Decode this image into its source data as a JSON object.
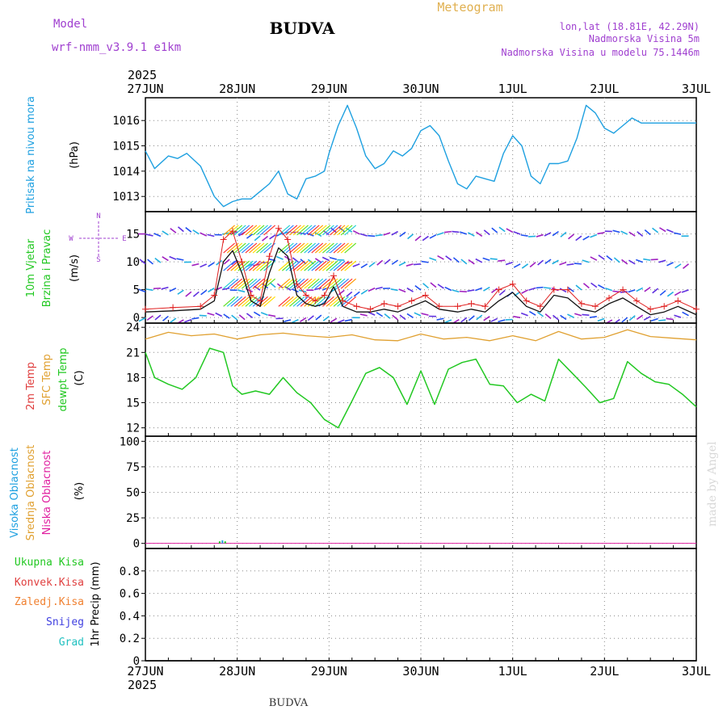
{
  "header": {
    "model_label": "Model",
    "model_name": "wrf-nmm_v3.9.1 e1km",
    "title": "BUDVA",
    "meteogram": "Meteogram",
    "lonlat": "lon,lat (18.81E, 42.29N)",
    "elevation": "Nadmorska Visina 5m",
    "model_elevation": "Nadmorska Visina u modelu 75.1446m",
    "year_top": "2025",
    "year_bottom": "2025",
    "footer": "BUDVA",
    "credit": "made by Angel"
  },
  "colors": {
    "pressure": "#1ea0e0",
    "sfc_temp": "#e0a030",
    "dewpt": "#22c822",
    "wind_speed": "#111111",
    "gust": "#e02020",
    "purple": "#a040d0",
    "snow": "#4040e0",
    "grad": "#20c0c0"
  },
  "chart_data": [
    {
      "type": "line",
      "panel": "pressure",
      "ylabel": "(hPa)",
      "side_label": "Pritisak na nivou mora",
      "x_ticks": [
        "27JUN",
        "28JUN",
        "29JUN",
        "30JUN",
        "1JUL",
        "2JUL",
        "3JUL"
      ],
      "ylim": [
        1012.4,
        1016.9
      ],
      "y_ticks": [
        1013,
        1014,
        1015,
        1016
      ],
      "grid": true,
      "series": [
        {
          "x": [
            0,
            0.1,
            0.25,
            0.35,
            0.45,
            0.6,
            0.75,
            0.85,
            0.95,
            1.05,
            1.15,
            1.25,
            1.35,
            1.45,
            1.55,
            1.65,
            1.75,
            1.85,
            1.95,
            2.0,
            2.1,
            2.2,
            2.3,
            2.4,
            2.5,
            2.6,
            2.7,
            2.8,
            2.9,
            3.0,
            3.1,
            3.2,
            3.3,
            3.4,
            3.5,
            3.6,
            3.7,
            3.8,
            3.9,
            4.0,
            4.1,
            4.2,
            4.3,
            4.4,
            4.5,
            4.6,
            4.7,
            4.8,
            4.9,
            5.0,
            5.1,
            5.2,
            5.3,
            5.4,
            5.5,
            5.6,
            5.7,
            5.8,
            5.9,
            6.0
          ],
          "values": [
            1014.8,
            1014.1,
            1014.6,
            1014.5,
            1014.7,
            1014.2,
            1013.0,
            1012.6,
            1012.8,
            1012.9,
            1012.9,
            1013.2,
            1013.5,
            1014.0,
            1013.1,
            1012.9,
            1013.7,
            1013.8,
            1014.0,
            1014.7,
            1015.8,
            1016.6,
            1015.7,
            1014.6,
            1014.1,
            1014.3,
            1014.8,
            1014.6,
            1014.9,
            1015.6,
            1015.8,
            1015.4,
            1014.4,
            1013.5,
            1013.3,
            1013.8,
            1013.7,
            1013.6,
            1014.7,
            1015.4,
            1015.0,
            1013.8,
            1013.5,
            1014.3,
            1014.3,
            1014.4,
            1015.3,
            1016.6,
            1016.3,
            1015.7,
            1015.5,
            1015.8,
            1016.1,
            1015.9,
            1015.9,
            1015.9,
            1015.9,
            1015.9,
            1015.9,
            1015.9
          ]
        }
      ]
    },
    {
      "type": "line",
      "panel": "wind",
      "ylabel": "(m/s)",
      "side_labels": [
        "10m Vjetar",
        "Brzina i Pravac"
      ],
      "compass": [
        "N",
        "W",
        "E",
        "S"
      ],
      "ylim": [
        -1,
        19
      ],
      "y_ticks": [
        0,
        5,
        10,
        15
      ],
      "grid": true,
      "series": [
        {
          "name": "speed",
          "x": [
            0,
            0.3,
            0.6,
            0.75,
            0.85,
            0.95,
            1.05,
            1.15,
            1.25,
            1.35,
            1.45,
            1.55,
            1.65,
            1.75,
            1.85,
            1.95,
            2.05,
            2.15,
            2.3,
            2.45,
            2.6,
            2.75,
            2.9,
            3.05,
            3.2,
            3.4,
            3.55,
            3.7,
            3.85,
            4.0,
            4.15,
            4.3,
            4.45,
            4.6,
            4.75,
            4.9,
            5.05,
            5.2,
            5.35,
            5.5,
            5.65,
            5.8,
            6.0
          ],
          "values": [
            1.0,
            1.2,
            1.5,
            3.0,
            10.0,
            12.0,
            8.0,
            3.0,
            2.0,
            8.0,
            12.5,
            11.0,
            4.0,
            2.5,
            2.0,
            2.5,
            5.5,
            2.0,
            1.0,
            1.0,
            1.5,
            1.0,
            2.0,
            3.0,
            1.5,
            1.0,
            1.5,
            1.0,
            3.0,
            4.5,
            2.0,
            1.0,
            4.0,
            3.5,
            1.5,
            1.0,
            2.5,
            3.5,
            2.0,
            0.5,
            1.0,
            2.0,
            0.5
          ]
        },
        {
          "name": "gust",
          "x": [
            0,
            0.3,
            0.6,
            0.75,
            0.85,
            0.95,
            1.05,
            1.15,
            1.25,
            1.35,
            1.45,
            1.55,
            1.65,
            1.75,
            1.85,
            1.95,
            2.05,
            2.15,
            2.3,
            2.45,
            2.6,
            2.75,
            2.9,
            3.05,
            3.2,
            3.4,
            3.55,
            3.7,
            3.85,
            4.0,
            4.15,
            4.3,
            4.45,
            4.6,
            4.75,
            4.9,
            5.05,
            5.2,
            5.35,
            5.5,
            5.65,
            5.8,
            6.0
          ],
          "values": [
            1.5,
            1.8,
            2.0,
            4.0,
            14.0,
            15.5,
            10.0,
            4.0,
            3.0,
            11.0,
            16.0,
            14.0,
            6.0,
            4.0,
            3.0,
            4.0,
            7.5,
            3.0,
            2.0,
            1.5,
            2.5,
            2.0,
            3.0,
            4.0,
            2.0,
            2.0,
            2.5,
            2.0,
            5.0,
            6.0,
            3.0,
            2.0,
            5.0,
            5.0,
            2.5,
            2.0,
            3.5,
            5.0,
            3.0,
            1.5,
            2.0,
            3.0,
            1.5
          ]
        }
      ]
    },
    {
      "type": "line",
      "panel": "temperature",
      "ylabel": "(C)",
      "side_labels": [
        "2m Temp",
        "SFC Temp",
        "dewpt Temp"
      ],
      "ylim": [
        11,
        24.5
      ],
      "y_ticks": [
        12,
        15,
        18,
        21,
        24
      ],
      "grid": true,
      "series": [
        {
          "name": "SFC Temp",
          "x": [
            0,
            0.25,
            0.5,
            0.75,
            1.0,
            1.25,
            1.5,
            1.75,
            2.0,
            2.25,
            2.5,
            2.75,
            3.0,
            3.25,
            3.5,
            3.75,
            4.0,
            4.25,
            4.5,
            4.75,
            5.0,
            5.25,
            5.5,
            5.75,
            6.0
          ],
          "values": [
            22.6,
            23.4,
            23.0,
            23.2,
            22.6,
            23.1,
            23.3,
            23.0,
            22.8,
            23.1,
            22.5,
            22.4,
            23.2,
            22.6,
            22.8,
            22.4,
            23.0,
            22.4,
            23.5,
            22.6,
            22.8,
            23.7,
            22.9,
            22.7,
            22.5
          ]
        },
        {
          "name": "dewpt Temp",
          "x": [
            0,
            0.1,
            0.25,
            0.4,
            0.55,
            0.7,
            0.85,
            0.95,
            1.05,
            1.2,
            1.35,
            1.5,
            1.65,
            1.8,
            1.95,
            2.1,
            2.25,
            2.4,
            2.55,
            2.7,
            2.85,
            3.0,
            3.15,
            3.3,
            3.45,
            3.6,
            3.75,
            3.9,
            4.05,
            4.2,
            4.35,
            4.5,
            4.65,
            4.8,
            4.95,
            5.1,
            5.25,
            5.4,
            5.55,
            5.7,
            5.85,
            6.0
          ],
          "values": [
            21.0,
            18.0,
            17.2,
            16.6,
            18.0,
            21.5,
            21.0,
            17.0,
            16.0,
            16.4,
            16.0,
            18.0,
            16.2,
            15.0,
            13.0,
            12.0,
            15.2,
            18.5,
            19.2,
            18.0,
            14.8,
            18.8,
            14.8,
            19.0,
            19.8,
            20.2,
            17.2,
            17.0,
            15.0,
            16.0,
            15.2,
            20.2,
            18.5,
            16.8,
            15.0,
            15.5,
            19.9,
            18.5,
            17.5,
            17.2,
            16.0,
            14.5
          ]
        }
      ]
    },
    {
      "type": "bar",
      "panel": "clouds",
      "ylabel": "(%)",
      "side_labels": [
        "Visoka Oblacnost",
        "Srednja Oblacnost",
        "Niska Oblacnost"
      ],
      "ylim": [
        -5,
        105
      ],
      "y_ticks": [
        0,
        25,
        50,
        75,
        100
      ],
      "grid": true,
      "series": [
        {
          "name": "Niska Oblacnost",
          "x": [
            0.8,
            0.83,
            0.86
          ],
          "values": [
            2,
            3,
            2
          ]
        }
      ]
    },
    {
      "type": "bar",
      "panel": "precip",
      "ylabel": "1hr Precip (mm)",
      "side_labels": [
        "Ukupna Kisa",
        "Konvek.Kisa",
        "Zaledj.Kisa",
        "Snijeg",
        "Grad"
      ],
      "ylim": [
        0,
        1.0
      ],
      "y_ticks": [
        0,
        0.2,
        0.4,
        0.6,
        0.8
      ],
      "grid": true,
      "x_ticks": [
        "27JUN",
        "28JUN",
        "29JUN",
        "30JUN",
        "1JUL",
        "2JUL",
        "3JUL"
      ],
      "series": [
        {
          "name": "Ukupna Kisa",
          "x": [],
          "values": []
        }
      ]
    }
  ]
}
